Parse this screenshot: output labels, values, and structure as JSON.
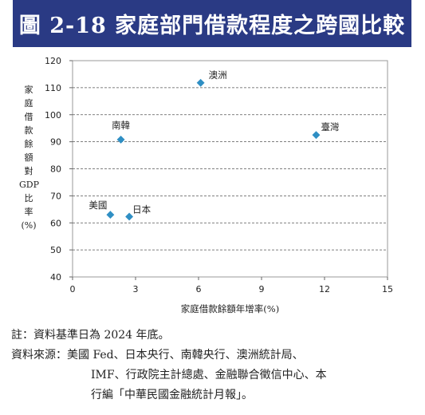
{
  "title": "圖 2-18 家庭部門借款程度之跨國比較",
  "notes": {
    "note": "註：資料基準日為 2024 年底。",
    "source_label": "資料來源：",
    "source_line1": "美國 Fed、日本央行、南韓央行、澳洲統計局、",
    "source_line2": "IMF、行政院主計總處、金融聯合徵信中心、本",
    "source_line3": "行編「中華民國金融統計月報」。"
  },
  "chart_data": {
    "type": "scatter",
    "xlabel": "家庭借款餘額年增率(%)",
    "ylabel": "家庭借款餘額對GDP比率(%)",
    "ylabel_chars": [
      "家",
      "庭",
      "借",
      "款",
      "餘",
      "額",
      "對",
      "GDP",
      "比",
      "率",
      "(%)"
    ],
    "xlim": [
      0,
      15
    ],
    "ylim": [
      40,
      120
    ],
    "xticks": [
      0,
      3,
      6,
      9,
      12,
      15
    ],
    "yticks": [
      40,
      50,
      60,
      70,
      80,
      90,
      100,
      110,
      120
    ],
    "grid": "horizontal dashed",
    "marker_color": "#2f8fc4",
    "points": [
      {
        "label": "澳洲",
        "x": 6.1,
        "y": 111.8
      },
      {
        "label": "南韓",
        "x": 2.3,
        "y": 90.8
      },
      {
        "label": "臺灣",
        "x": 11.6,
        "y": 92.5
      },
      {
        "label": "美國",
        "x": 1.8,
        "y": 63.0
      },
      {
        "label": "日本",
        "x": 2.7,
        "y": 62.3
      }
    ]
  }
}
